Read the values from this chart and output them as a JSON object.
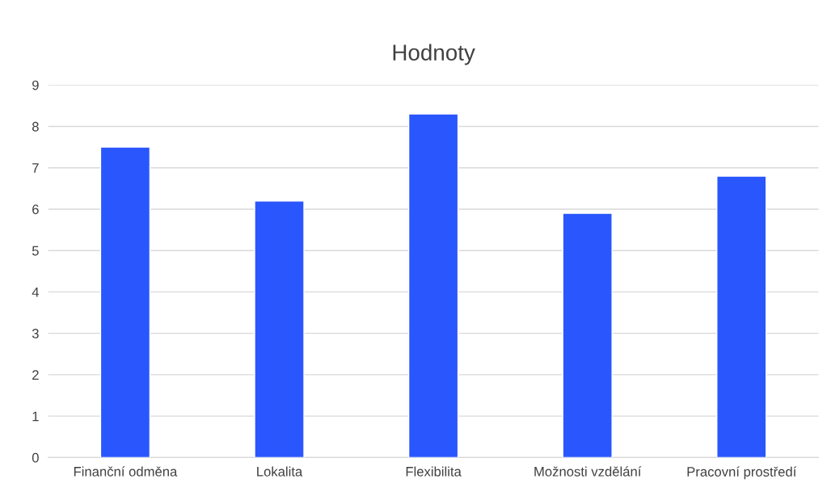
{
  "chart_data": {
    "type": "bar",
    "title": "Hodnoty",
    "categories": [
      "Finanční odměna",
      "Lokalita",
      "Flexibilita",
      "Možnosti vzdělání",
      "Pracovní prostředí"
    ],
    "values": [
      7.5,
      6.2,
      8.3,
      5.9,
      6.8
    ],
    "color": "#2a56fe",
    "ylim": [
      0,
      9
    ],
    "yticks": [
      0,
      1,
      2,
      3,
      4,
      5,
      6,
      7,
      8,
      9
    ],
    "grid": "y",
    "legend": false
  }
}
